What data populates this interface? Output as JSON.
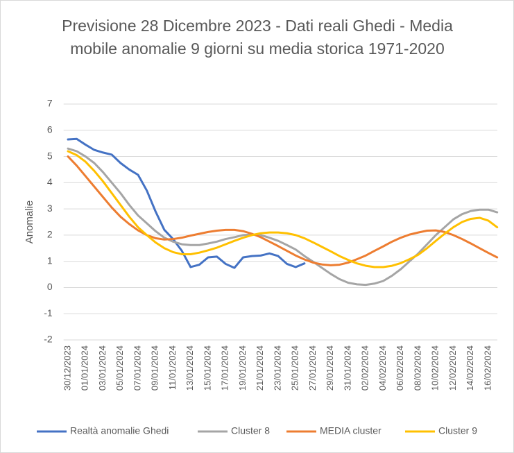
{
  "chart_data": {
    "type": "line",
    "title": "Previsione 28 Dicembre 2023 - Dati reali Ghedi - Media mobile anomalie 9 giorni su media storica 1971-2020",
    "y_label": "Anomalie",
    "categories": [
      "30/12/2023",
      null,
      "01/01/2024",
      null,
      "03/01/2024",
      null,
      "05/01/2024",
      null,
      "07/01/2024",
      null,
      "09/01/2024",
      null,
      "11/01/2024",
      null,
      "13/01/2024",
      null,
      "15/01/2024",
      null,
      "17/01/2024",
      null,
      "19/01/2024",
      null,
      "21/01/2024",
      null,
      "23/01/2024",
      null,
      "25/01/2024",
      null,
      "27/01/2024",
      null,
      "29/01/2024",
      null,
      "31/01/2024",
      null,
      "02/02/2024",
      null,
      "04/02/2024",
      null,
      "06/02/2024",
      null,
      "08/02/2024",
      null,
      "10/02/2024",
      null,
      "12/02/2024",
      null,
      "14/02/2024",
      null,
      "16/02/2024",
      null
    ],
    "series": [
      {
        "name": "Realtà anomalie Ghedi",
        "color": "#4472c4",
        "values": [
          5.65,
          5.67,
          5.45,
          5.25,
          5.15,
          5.07,
          4.75,
          4.5,
          4.3,
          3.7,
          2.9,
          2.2,
          1.85,
          1.4,
          0.78,
          0.87,
          1.15,
          1.18,
          0.9,
          0.75,
          1.15,
          1.2,
          1.22,
          1.3,
          1.2,
          0.9,
          0.78,
          0.92,
          null,
          null,
          null,
          null,
          null,
          null,
          null,
          null,
          null,
          null,
          null,
          null,
          null,
          null,
          null,
          null,
          null,
          null,
          null,
          null,
          null,
          null
        ]
      },
      {
        "name": "Cluster 8",
        "color": "#a5a5a5",
        "values": [
          5.3,
          5.2,
          5.0,
          4.75,
          4.4,
          4.0,
          3.6,
          3.15,
          2.75,
          2.45,
          2.15,
          1.9,
          1.75,
          1.65,
          1.62,
          1.62,
          1.68,
          1.75,
          1.85,
          1.92,
          2.0,
          2.02,
          2.0,
          1.9,
          1.78,
          1.62,
          1.45,
          1.2,
          0.98,
          0.75,
          0.52,
          0.32,
          0.18,
          0.12,
          0.1,
          0.15,
          0.25,
          0.45,
          0.7,
          1.0,
          1.3,
          1.65,
          2.0,
          2.3,
          2.6,
          2.8,
          2.92,
          2.97,
          2.97,
          2.87
        ]
      },
      {
        "name": "MEDIA cluster",
        "color": "#ed7d31",
        "values": [
          5.0,
          4.65,
          4.25,
          3.85,
          3.45,
          3.05,
          2.7,
          2.42,
          2.18,
          2.0,
          1.88,
          1.83,
          1.85,
          1.9,
          1.98,
          2.05,
          2.12,
          2.17,
          2.2,
          2.2,
          2.15,
          2.05,
          1.92,
          1.75,
          1.58,
          1.4,
          1.22,
          1.07,
          0.95,
          0.88,
          0.85,
          0.87,
          0.95,
          1.08,
          1.22,
          1.4,
          1.57,
          1.75,
          1.9,
          2.02,
          2.1,
          2.17,
          2.18,
          2.12,
          2.0,
          1.85,
          1.68,
          1.5,
          1.32,
          1.15
        ]
      },
      {
        "name": "Cluster 9",
        "color": "#ffc000",
        "values": [
          5.2,
          5.05,
          4.8,
          4.45,
          4.05,
          3.6,
          3.15,
          2.7,
          2.3,
          2.0,
          1.72,
          1.5,
          1.35,
          1.27,
          1.27,
          1.33,
          1.42,
          1.52,
          1.65,
          1.78,
          1.9,
          2.0,
          2.07,
          2.1,
          2.1,
          2.07,
          2.0,
          1.88,
          1.72,
          1.55,
          1.38,
          1.2,
          1.05,
          0.92,
          0.83,
          0.78,
          0.78,
          0.83,
          0.93,
          1.08,
          1.25,
          1.5,
          1.78,
          2.05,
          2.3,
          2.5,
          2.62,
          2.66,
          2.55,
          2.3
        ]
      }
    ],
    "ylim": [
      -2,
      7
    ],
    "yticks": [
      -2,
      -1,
      0,
      1,
      2,
      3,
      4,
      5,
      6,
      7
    ],
    "grid": true,
    "legend": "bottom"
  }
}
